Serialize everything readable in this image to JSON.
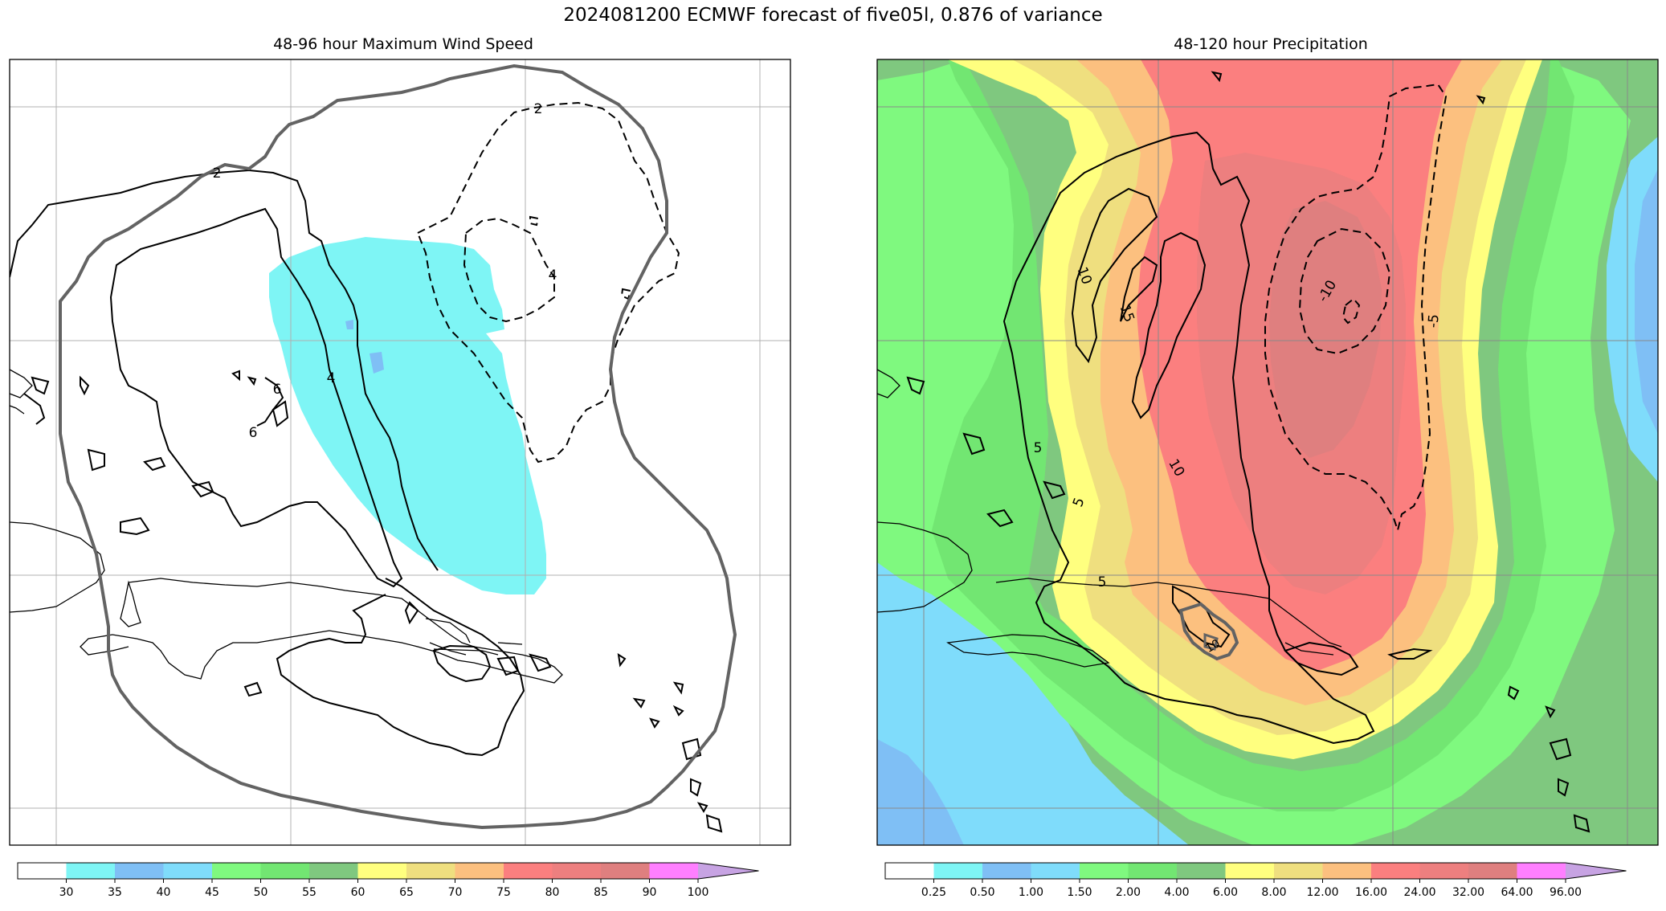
{
  "figure": {
    "title": "2024081200 ECMWF forecast of five05l, 0.876 of variance"
  },
  "left_panel": {
    "title": "48-96 hour Maximum Wind Speed",
    "contour_labels": [
      "2",
      "2",
      "4",
      "4",
      "6",
      "6"
    ],
    "colorbar": {
      "colors": [
        "#ffffff",
        "#7ef5f5",
        "#7fbff5",
        "#7fdcfb",
        "#7ff97f",
        "#72e672",
        "#7fc87f",
        "#ffff7f",
        "#efdf7f",
        "#fcc07f",
        "#fb7f7f",
        "#ed7f7f",
        "#df7f7f",
        "#ff7fff",
        "#c7a3e3"
      ],
      "tick_labels": [
        "30",
        "35",
        "40",
        "45",
        "50",
        "55",
        "60",
        "65",
        "70",
        "75",
        "80",
        "85",
        "90",
        "100"
      ]
    }
  },
  "right_panel": {
    "title": "48-120 hour Precipitation",
    "contour_labels": [
      "10",
      "15",
      "10",
      "-10",
      "-5",
      "5",
      "5",
      "5",
      "10"
    ],
    "colorbar": {
      "colors": [
        "#ffffff",
        "#7ef5f5",
        "#7fbff5",
        "#7fdcfb",
        "#7ff97f",
        "#72e672",
        "#7fc87f",
        "#ffff7f",
        "#efdf7f",
        "#fcc07f",
        "#fb7f7f",
        "#ed7f7f",
        "#df7f7f",
        "#ff7fff",
        "#c7a3e3"
      ],
      "tick_labels": [
        "0.25",
        "0.50",
        "1.00",
        "1.50",
        "2.00",
        "4.00",
        "6.00",
        "8.00",
        "12.00",
        "16.00",
        "24.00",
        "32.00",
        "64.00",
        "96.00"
      ]
    }
  }
}
